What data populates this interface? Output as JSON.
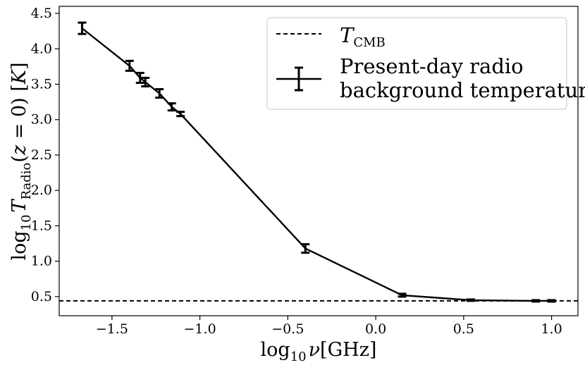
{
  "chart_data": {
    "type": "line",
    "xlabel": {
      "base": "log",
      "sub": "10",
      "main": "ν[GHz]"
    },
    "ylabel": {
      "base": "log",
      "sub": "10",
      "sym": "T",
      "symsub": "Radio",
      "rest": "(z = 0) [K]"
    },
    "xlim": [
      -1.8,
      1.15
    ],
    "ylim": [
      0.23,
      4.6
    ],
    "xticks": [
      -1.5,
      -1.0,
      -0.5,
      0.0,
      0.5,
      1.0
    ],
    "xtick_labels": [
      "−1.5",
      "−1.0",
      "−0.5",
      "0.0",
      "0.5",
      "1.0"
    ],
    "yticks": [
      0.5,
      1.0,
      1.5,
      2.0,
      2.5,
      3.0,
      3.5,
      4.0,
      4.5
    ],
    "ytick_labels": [
      "0.5",
      "1.0",
      "1.5",
      "2.0",
      "2.5",
      "3.0",
      "3.5",
      "4.0",
      "4.5"
    ],
    "series": [
      {
        "name": "Present-day radio background temperature",
        "style": "solid-errorbar",
        "color": "#000000",
        "x": [
          -1.67,
          -1.4,
          -1.34,
          -1.31,
          -1.23,
          -1.16,
          -1.11,
          -0.4,
          0.15,
          0.54,
          0.91,
          1.0
        ],
        "y": [
          4.29,
          3.76,
          3.59,
          3.53,
          3.37,
          3.18,
          3.08,
          1.18,
          0.52,
          0.45,
          0.44,
          0.44
        ],
        "yerr": [
          0.08,
          0.07,
          0.07,
          0.06,
          0.06,
          0.05,
          0.03,
          0.06,
          0.02,
          0.01,
          0.01,
          0.01
        ]
      },
      {
        "name": "T_CMB",
        "style": "dashed-hline",
        "color": "#000000",
        "y": 0.44
      }
    ],
    "legend": {
      "position": "upper-right",
      "entries": [
        {
          "label": "T",
          "label_sub": "CMB",
          "style": "dashed"
        },
        {
          "label_lines": [
            "Present-day radio",
            "background temperature"
          ],
          "style": "errorbar"
        }
      ]
    }
  }
}
